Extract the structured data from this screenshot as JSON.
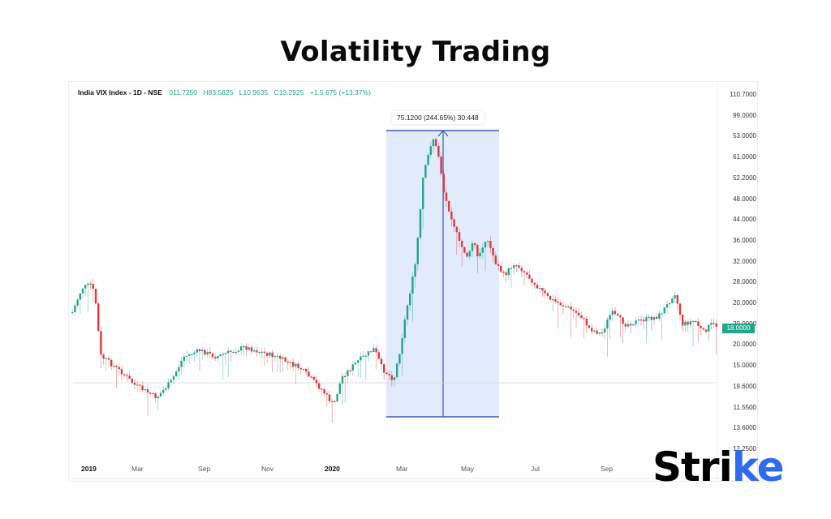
{
  "header": {
    "title": "Volatility Trading"
  },
  "legend": {
    "symbol": "India VIX Index - 1D - NSE",
    "open": "011.7250",
    "high": "H83.5825",
    "low": "L10.9635",
    "close": "C13.2925",
    "change": "+1.5.675 (+13.37%)"
  },
  "measure_tooltip": "75.1200 (244.65%) 30.448",
  "current_price": "18.0000",
  "brand": {
    "text_main": "Stri",
    "text_accent": "ke"
  },
  "colors": {
    "up": "#22a58a",
    "down": "#e0383b",
    "range_fill": "#dde8fb",
    "range_line": "#3b5bb5",
    "badge": "#22a58a",
    "brand_accent": "#2f6bf0"
  },
  "chart_data": {
    "type": "candlestick",
    "title": "Volatility Trading",
    "subtitle": "India VIX Index - 1D - NSE",
    "xlabel": "",
    "ylabel": "",
    "y_tick_labels": [
      "110.7000",
      "99.0000",
      "53.0000",
      "61.0000",
      "52.2000",
      "48.0000",
      "44.0000",
      "36.0000",
      "32.0000",
      "28.0000",
      "20.0000",
      "20.0000",
      "20.0000",
      "15.0000",
      "19.6000",
      "11.5500",
      "13.6000",
      "12.2500"
    ],
    "x_tick_labels": [
      "2019",
      "Mar",
      "Sep",
      "Nov",
      "2020",
      "Mar",
      "May",
      "Jul",
      "Sep"
    ],
    "grid": false,
    "legend_position": "top-left",
    "annotations": [
      {
        "type": "price_range",
        "label": "75.1200 (244.65%) 30.448",
        "from": "Feb 2020",
        "to": "Jun 2020"
      },
      {
        "type": "last_price",
        "label": "18.0000"
      }
    ],
    "approx_close_series": {
      "x": [
        "2019-01",
        "2019-02",
        "2019-03",
        "2019-04",
        "2019-05",
        "2019-06",
        "2019-07",
        "2019-08",
        "2019-09",
        "2019-10",
        "2019-11",
        "2019-12",
        "2020-01",
        "2020-02",
        "2020-03-early",
        "2020-03-mid",
        "2020-03-late",
        "2020-04",
        "2020-05",
        "2020-06",
        "2020-07",
        "2020-08",
        "2020-09",
        "2020-10",
        "2020-11"
      ],
      "values": [
        27,
        17,
        15,
        13,
        18,
        19,
        17,
        17,
        16,
        15,
        14,
        13,
        18,
        15,
        30,
        60,
        75,
        45,
        38,
        29,
        25,
        22,
        19,
        21,
        18
      ]
    }
  }
}
